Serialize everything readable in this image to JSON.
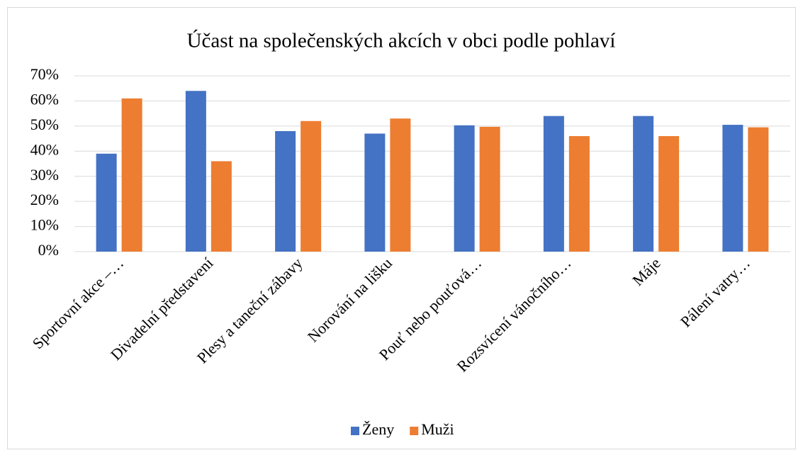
{
  "chart_data": {
    "type": "bar",
    "title": "Účast na společenských akcích v obci podle pohlaví",
    "categories": [
      "Sportovní akce –…",
      "Divadelní představení",
      "Plesy a taneční zábavy",
      "Norování na lišku",
      "Pouť nebo pouťová…",
      "Rozsvícení vánočního…",
      "Máje",
      "Pálení vatry…"
    ],
    "series": [
      {
        "name": "Ženy",
        "color": "#4472c4",
        "values": [
          39,
          64,
          48,
          47,
          50.3,
          54,
          54,
          50.5
        ]
      },
      {
        "name": "Muži",
        "color": "#ed7d31",
        "values": [
          61,
          36,
          52,
          53,
          49.7,
          46,
          46,
          49.5
        ]
      }
    ],
    "ylim": [
      0,
      70
    ],
    "yticks": [
      {
        "value": 0,
        "label": "0%"
      },
      {
        "value": 10,
        "label": "10%"
      },
      {
        "value": 20,
        "label": "20%"
      },
      {
        "value": 30,
        "label": "30%"
      },
      {
        "value": 40,
        "label": "40%"
      },
      {
        "value": 50,
        "label": "50%"
      },
      {
        "value": 60,
        "label": "60%"
      },
      {
        "value": 70,
        "label": "70%"
      }
    ],
    "grid": true,
    "legend": "bottom"
  }
}
